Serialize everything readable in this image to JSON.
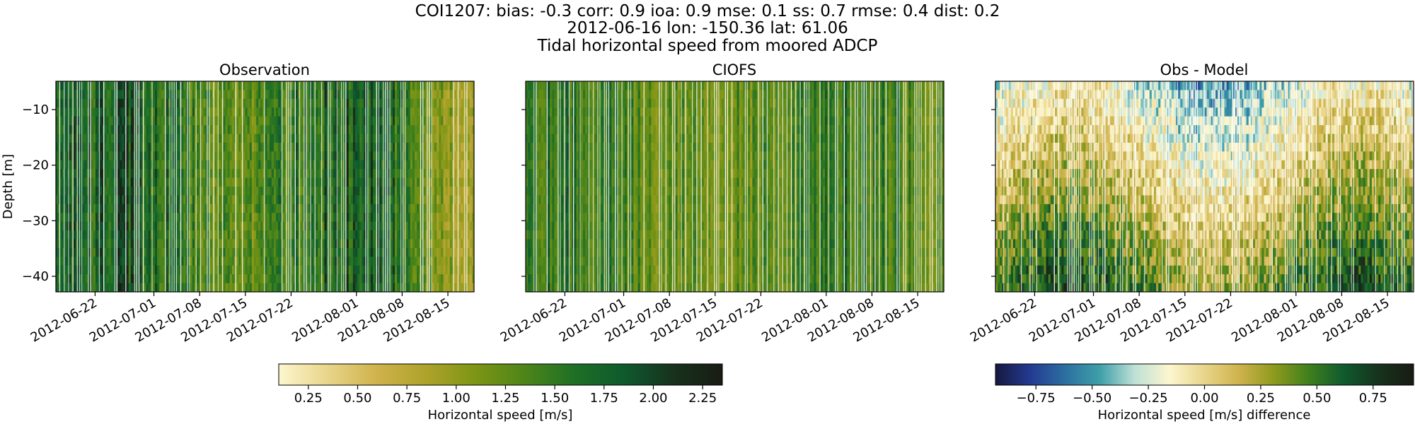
{
  "figure": {
    "title_lines": [
      "COI1207: bias: -0.3  corr: 0.9  ioa: 0.9  mse: 0.1  ss: 0.7  rmse: 0.4  dist: 0.2",
      "2012-06-16 lon: -150.36 lat: 61.06",
      "Tidal horizontal speed from moored ADCP"
    ]
  },
  "chart_data": [
    {
      "type": "heatmap",
      "title": "Observation",
      "ylabel": "Depth [m]",
      "ylim": [
        -42.8,
        -4.9
      ],
      "yticks": [
        -10,
        -20,
        -30,
        -40
      ],
      "x_range": [
        "2012-06-16",
        "2012-08-19"
      ],
      "xticks": [
        "2012-06-22",
        "2012-07-01",
        "2012-07-08",
        "2012-07-15",
        "2012-07-22",
        "2012-08-01",
        "2012-08-08",
        "2012-08-15"
      ],
      "colormap": "speed",
      "clim": [
        0.1,
        2.35
      ]
    },
    {
      "type": "heatmap",
      "title": "CIOFS",
      "ylim": [
        -42.8,
        -4.9
      ],
      "x_range": [
        "2012-06-16",
        "2012-08-19"
      ],
      "xticks": [
        "2012-06-22",
        "2012-07-01",
        "2012-07-08",
        "2012-07-15",
        "2012-07-22",
        "2012-08-01",
        "2012-08-08",
        "2012-08-15"
      ],
      "colormap": "speed",
      "clim": [
        0.1,
        2.35
      ]
    },
    {
      "type": "heatmap",
      "title": "Obs - Model",
      "ylim": [
        -42.8,
        -4.9
      ],
      "x_range": [
        "2012-06-16",
        "2012-08-19"
      ],
      "xticks": [
        "2012-06-22",
        "2012-07-01",
        "2012-07-08",
        "2012-07-15",
        "2012-07-22",
        "2012-08-01",
        "2012-08-08",
        "2012-08-15"
      ],
      "colormap": "diff",
      "clim": [
        -0.93,
        0.93
      ]
    }
  ],
  "colorbars": [
    {
      "label": "Horizontal speed [m/s]",
      "range": [
        0.1,
        2.35
      ],
      "ticks": [
        "0.25",
        "0.50",
        "0.75",
        "1.00",
        "1.25",
        "1.50",
        "1.75",
        "2.00",
        "2.25"
      ],
      "colors": [
        "#fdf6cf",
        "#e8d58a",
        "#cfb24c",
        "#aea22a",
        "#7c9514",
        "#4d8519",
        "#1f6f25",
        "#0f5a2e",
        "#17321d",
        "#191b12"
      ]
    },
    {
      "label": "Horizontal speed [m/s] difference",
      "range": [
        -0.93,
        0.93
      ],
      "ticks": [
        "−0.75",
        "−0.50",
        "−0.25",
        "0.00",
        "0.25",
        "0.50",
        "0.75"
      ],
      "colors": [
        "#15193f",
        "#243a92",
        "#2c6fa0",
        "#3fa0a9",
        "#bfe0d6",
        "#fdf6cf",
        "#e8d58a",
        "#cfb24c",
        "#8d9a1d",
        "#3f7f1c",
        "#0f5a2e",
        "#17321d",
        "#191b12"
      ]
    }
  ]
}
